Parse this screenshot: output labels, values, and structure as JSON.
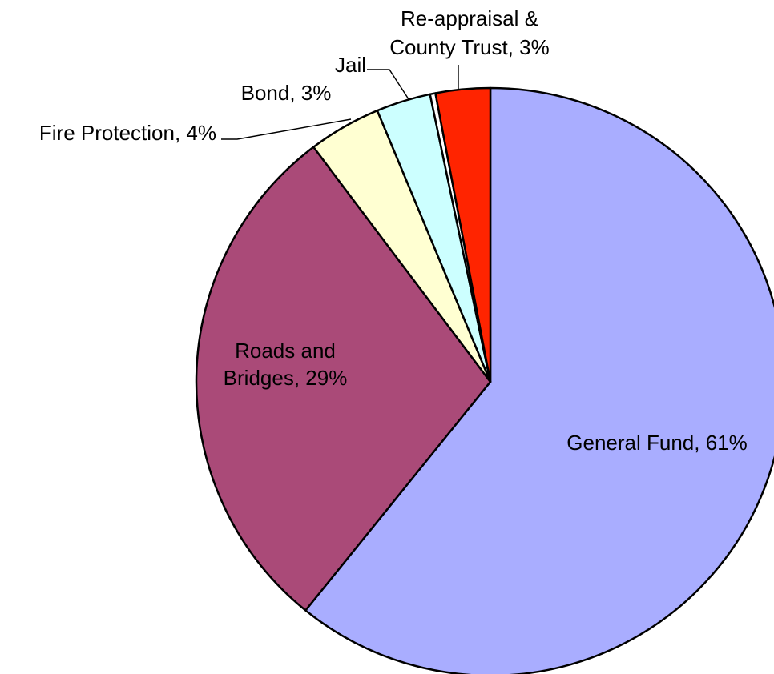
{
  "chart_data": {
    "type": "pie",
    "title": "",
    "start_angle_deg": 0,
    "direction": "clockwise",
    "slices": [
      {
        "label_lines": [
          "General Fund, 61%"
        ],
        "category": "General Fund",
        "value": 61,
        "color": "#a9adff"
      },
      {
        "label_lines": [
          "Roads and",
          "Bridges, 29%"
        ],
        "category": "Roads and Bridges",
        "value": 29,
        "color": "#aa4a78"
      },
      {
        "label_lines": [
          "Fire Protection, 4%"
        ],
        "category": "Fire Protection",
        "value": 4,
        "color": "#ffffd2"
      },
      {
        "label_lines": [
          "Bond, 3%"
        ],
        "category": "Bond",
        "value": 3,
        "color": "#ccffff"
      },
      {
        "label_lines": [
          "Jail"
        ],
        "category": "Jail",
        "value": 0.3,
        "color": "#ffffff"
      },
      {
        "label_lines": [
          "Re-appraisal &",
          "County Trust, 3%"
        ],
        "category": "Re-appraisal & County Trust",
        "value": 3,
        "color": "#ff2400"
      }
    ]
  }
}
